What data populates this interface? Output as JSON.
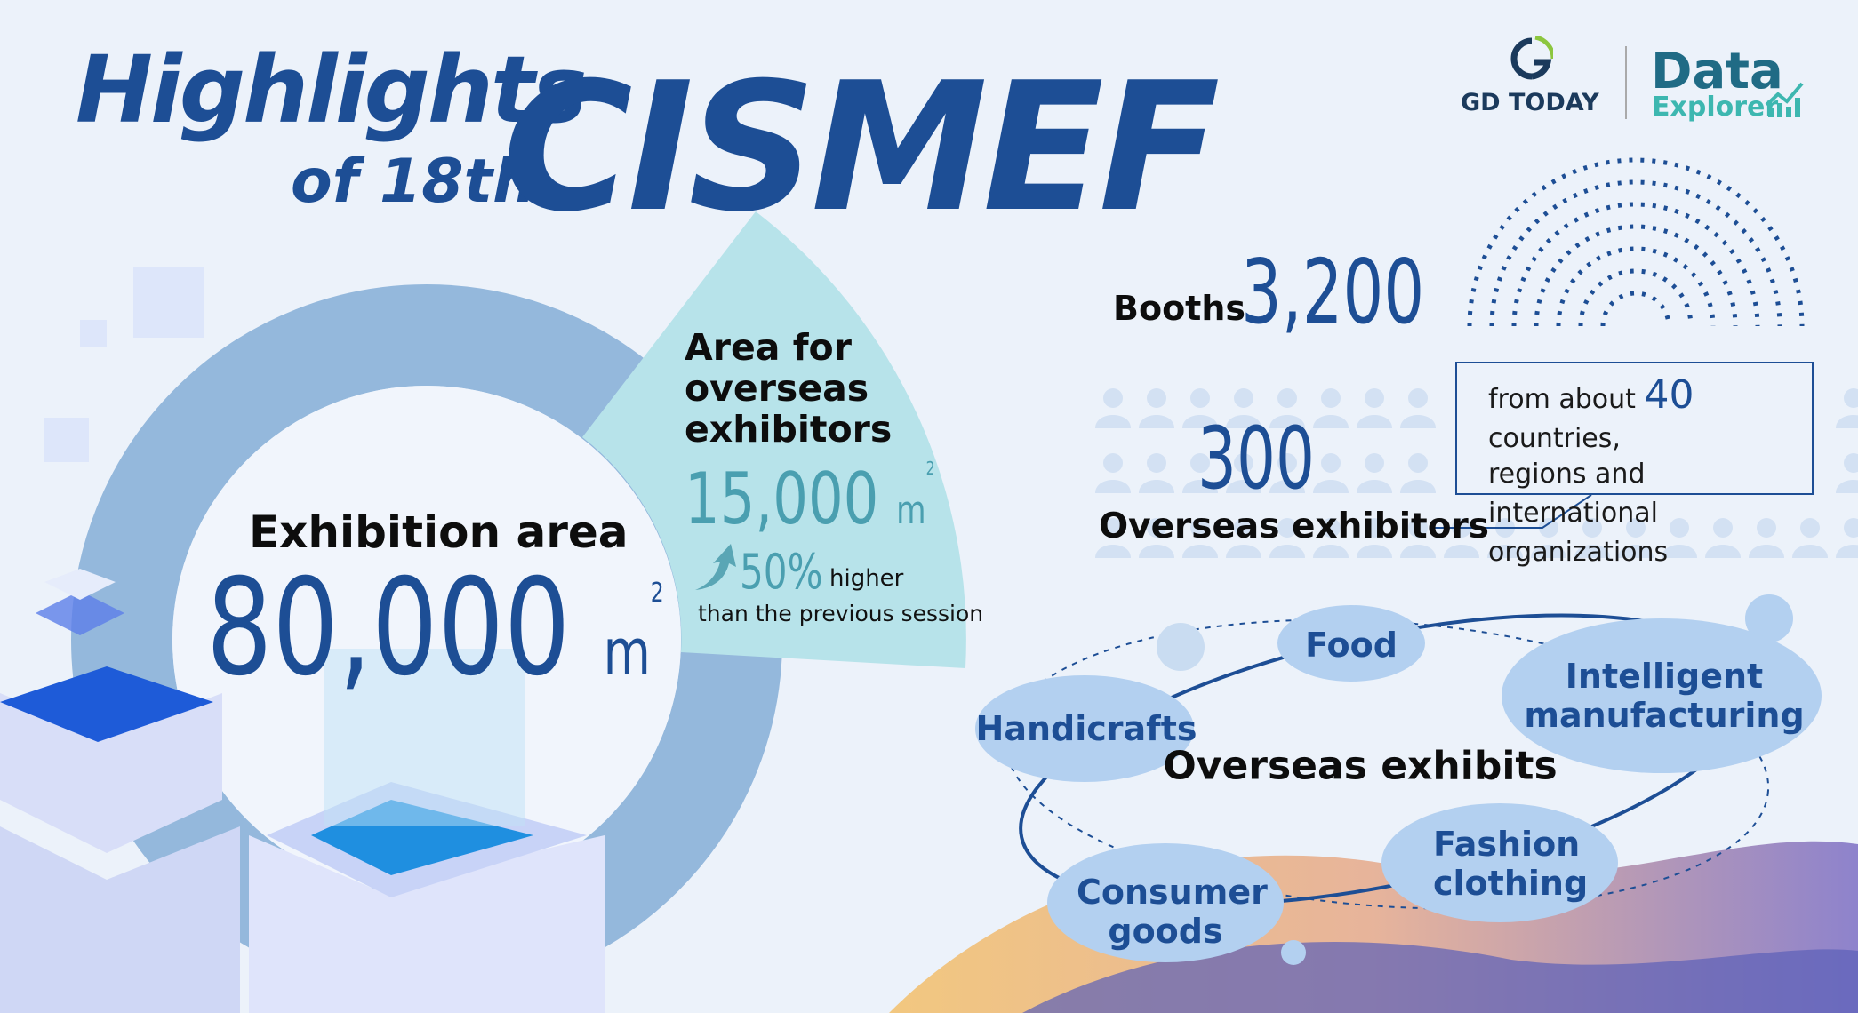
{
  "title": {
    "line1": "Highlights",
    "line2": "of 18th",
    "line3": "CISMEF"
  },
  "logos": {
    "gd_today": "GD TODAY",
    "data": "Data",
    "explorer": "Explorer"
  },
  "exhibition_area": {
    "label": "Exhibition area",
    "value": "80,000",
    "unit": "m",
    "sup": "2"
  },
  "overseas_area": {
    "label_lines": [
      "Area for",
      "overseas",
      "exhibitors"
    ],
    "value": "15,000",
    "unit": "m",
    "sup": "2",
    "increase": "50%",
    "increase_text": "higher",
    "comparison": "than the previous session"
  },
  "booths": {
    "label": "Booths",
    "value": "3,200"
  },
  "overseas_exhibitors": {
    "value": "300",
    "label": "Overseas exhibitors",
    "note_prefix": "from about ",
    "note_number": "40",
    "note_suffix": " countries,",
    "note_line2": "regions and international",
    "note_line3": "organizations"
  },
  "exhibits": {
    "label": "Overseas exhibits",
    "categories": [
      "Food",
      "Intelligent manufacturing",
      "Handicrafts",
      "Fashion clothing",
      "Consumer goods"
    ]
  },
  "colors": {
    "primary": "#1d4e95",
    "teal": "#4a9fb0",
    "ring": "#94b8dc",
    "wedge": "#b7e3ea",
    "bubble": "#b3d0f0"
  }
}
